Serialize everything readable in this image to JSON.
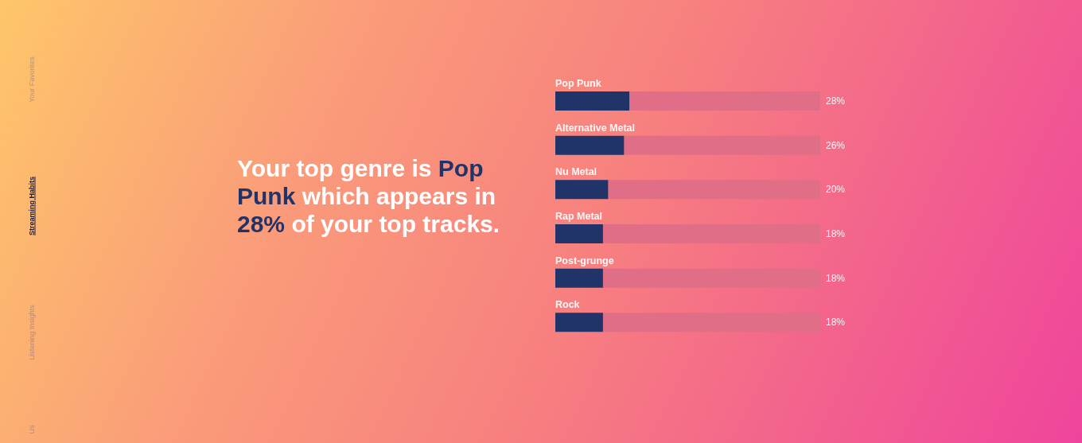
{
  "chart_data": {
    "type": "bar",
    "orientation": "horizontal",
    "stacked": true,
    "title": "Your top genre is Pop Punk which appears in 28% of your top tracks.",
    "categories": [
      "Pop Punk",
      "Alternative Metal",
      "Nu Metal",
      "Rap Metal",
      "Post-grunge",
      "Rock"
    ],
    "series": [
      {
        "color": "#21346a",
        "values": [
          28,
          26,
          20,
          18,
          18,
          18
        ],
        "value_labels": [
          "28%",
          "26%",
          "20%",
          "18%",
          "18%",
          "18%"
        ]
      },
      {
        "color": "#e06e86",
        "values": [
          72,
          74,
          80,
          82,
          82,
          82
        ]
      }
    ],
    "xlim": [
      0,
      100
    ],
    "tick_labels": "y",
    "annotations": [
      "Your Favorites",
      "Streaming Habits",
      "Listening Insights",
      "Us"
    ]
  }
}
